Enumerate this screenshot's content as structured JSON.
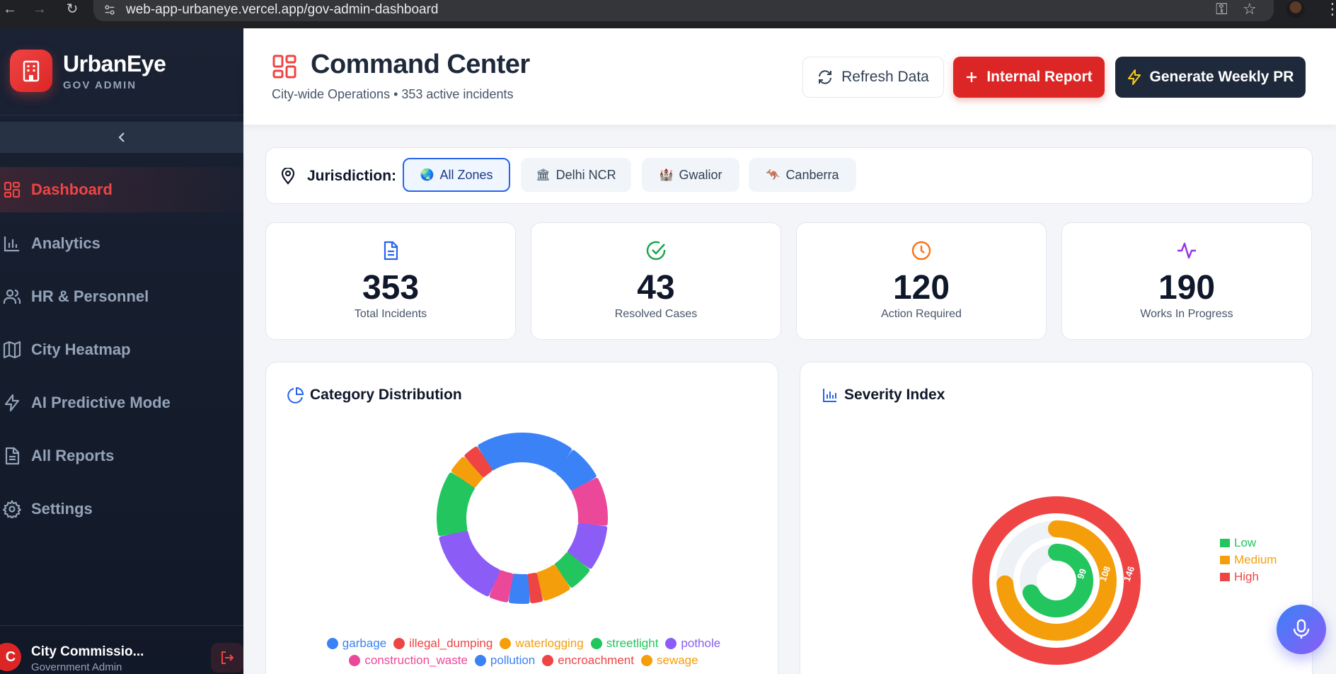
{
  "browser": {
    "url": "web-app-urbaneye.vercel.app/gov-admin-dashboard"
  },
  "sidebar": {
    "brand_name": "UrbanEye",
    "brand_sub": "GOV ADMIN",
    "items": [
      {
        "label": "Dashboard",
        "icon": "grid-icon",
        "active": true
      },
      {
        "label": "Analytics",
        "icon": "bar-chart-icon",
        "active": false
      },
      {
        "label": "HR & Personnel",
        "icon": "users-icon",
        "active": false
      },
      {
        "label": "City Heatmap",
        "icon": "map-icon",
        "active": false
      },
      {
        "label": "AI Predictive Mode",
        "icon": "bolt-icon",
        "active": false
      },
      {
        "label": "All Reports",
        "icon": "document-icon",
        "active": false
      },
      {
        "label": "Settings",
        "icon": "gear-icon",
        "active": false
      }
    ],
    "user": {
      "initial": "C",
      "name": "City Commissio...",
      "role": "Government Admin"
    }
  },
  "header": {
    "title": "Command Center",
    "subtitle": "City-wide Operations • 353 active incidents",
    "refresh_label": "Refresh Data",
    "internal_label": "Internal Report",
    "weekly_label": "Generate Weekly PR"
  },
  "jurisdiction": {
    "label": "Jurisdiction:",
    "zones": [
      {
        "label": "All Zones",
        "emoji": "🌏",
        "active": true
      },
      {
        "label": "Delhi NCR",
        "emoji": "🏛",
        "active": false
      },
      {
        "label": "Gwalior",
        "emoji": "🏰",
        "active": false
      },
      {
        "label": "Canberra",
        "emoji": "🦘",
        "active": false
      }
    ]
  },
  "stats": [
    {
      "value": "353",
      "label": "Total Incidents",
      "icon": "document-icon",
      "color": "#2563eb"
    },
    {
      "value": "43",
      "label": "Resolved Cases",
      "icon": "check-circle-icon",
      "color": "#16a34a"
    },
    {
      "value": "120",
      "label": "Action Required",
      "icon": "clock-icon",
      "color": "#f97316"
    },
    {
      "value": "190",
      "label": "Works In Progress",
      "icon": "activity-icon",
      "color": "#9333ea"
    }
  ],
  "category_card": {
    "title": "Category Distribution",
    "legend_row1": [
      {
        "name": "garbage",
        "color": "#3b82f6"
      },
      {
        "name": "illegal_dumping",
        "color": "#ef4444"
      },
      {
        "name": "waterlogging",
        "color": "#f59e0b"
      },
      {
        "name": "streetlight",
        "color": "#22c55e"
      },
      {
        "name": "pothole",
        "color": "#8b5cf6"
      }
    ],
    "legend_row2": [
      {
        "name": "construction_waste",
        "color": "#ec4899"
      },
      {
        "name": "pollution",
        "color": "#3b82f6"
      },
      {
        "name": "encroachment",
        "color": "#ef4444"
      },
      {
        "name": "sewage",
        "color": "#f59e0b"
      }
    ]
  },
  "severity_card": {
    "title": "Severity Index",
    "legend": [
      {
        "name": "Low",
        "color": "#22c55e"
      },
      {
        "name": "Medium",
        "color": "#f59e0b"
      },
      {
        "name": "High",
        "color": "#ef4444"
      }
    ]
  },
  "chart_data": [
    {
      "type": "pie",
      "title": "Category Distribution",
      "donut": true,
      "slices": [
        {
          "name": "garbage",
          "value": 60,
          "color": "#3b82f6"
        },
        {
          "name": "garbage",
          "value": 22,
          "color": "#3b82f6"
        },
        {
          "name": "construction_waste",
          "value": 30,
          "color": "#ec4899"
        },
        {
          "name": "pothole",
          "value": 28,
          "color": "#8b5cf6"
        },
        {
          "name": "streetlight",
          "value": 16,
          "color": "#22c55e"
        },
        {
          "name": "waterlogging",
          "value": 18,
          "color": "#f59e0b"
        },
        {
          "name": "illegal_dumping",
          "value": 8,
          "color": "#ef4444"
        },
        {
          "name": "pollution",
          "value": 13,
          "color": "#3b82f6"
        },
        {
          "name": "construction_waste",
          "value": 12,
          "color": "#ec4899"
        },
        {
          "name": "pothole",
          "value": 48,
          "color": "#8b5cf6"
        },
        {
          "name": "streetlight",
          "value": 40,
          "color": "#22c55e"
        },
        {
          "name": "waterlogging",
          "value": 12,
          "color": "#f59e0b"
        },
        {
          "name": "encroachment",
          "value": 10,
          "color": "#ef4444"
        }
      ]
    },
    {
      "type": "radial-bar",
      "title": "Severity Index",
      "series": [
        {
          "name": "Low",
          "value": 99,
          "color": "#22c55e"
        },
        {
          "name": "Medium",
          "value": 108,
          "color": "#f59e0b"
        },
        {
          "name": "High",
          "value": 146,
          "color": "#ef4444"
        }
      ],
      "max": 146,
      "legend": "right"
    }
  ]
}
